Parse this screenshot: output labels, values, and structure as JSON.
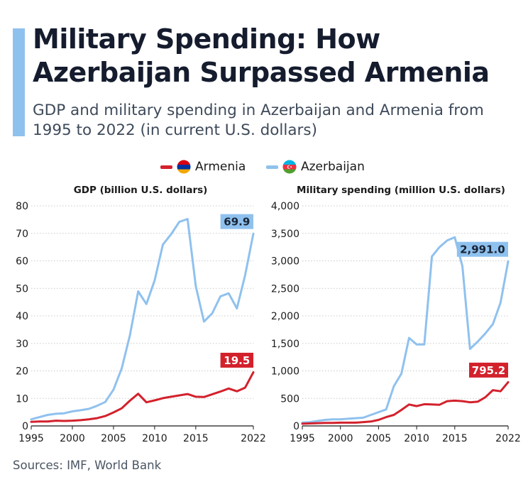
{
  "header": {
    "title": "Military Spending: How Azerbaijan Surpassed Armenia",
    "subtitle": "GDP and military spending in Azerbaijan and Armenia from 1995 to 2022 (in current U.S. dollars)"
  },
  "legend": {
    "items": [
      {
        "label": "Armenia",
        "color": "#d3212c",
        "flag-icon": "armenia-flag-icon"
      },
      {
        "label": "Azerbaijan",
        "color": "#8fc1ee",
        "flag-icon": "azerbaijan-flag-icon"
      }
    ]
  },
  "footer": {
    "source": "Sources: IMF, World Bank"
  },
  "chart_data": [
    {
      "type": "line",
      "title": "GDP (billion U.S. dollars)",
      "xlabel": "",
      "ylabel": "",
      "x": [
        1995,
        1996,
        1997,
        1998,
        1999,
        2000,
        2001,
        2002,
        2003,
        2004,
        2005,
        2006,
        2007,
        2008,
        2009,
        2010,
        2011,
        2012,
        2013,
        2014,
        2015,
        2016,
        2017,
        2018,
        2019,
        2020,
        2021,
        2022
      ],
      "xticks": [
        "1995",
        "2000",
        "2005",
        "2010",
        "2015",
        "2022"
      ],
      "xtick_values": [
        1995,
        2000,
        2005,
        2010,
        2015,
        2022
      ],
      "ylim": [
        0,
        80
      ],
      "yticks": [
        "0",
        "10",
        "20",
        "30",
        "40",
        "50",
        "60",
        "70",
        "80"
      ],
      "grid": true,
      "series": [
        {
          "name": "Azerbaijan",
          "color": "#8fc1ee",
          "values": [
            2.4,
            3.2,
            4.0,
            4.4,
            4.6,
            5.3,
            5.7,
            6.2,
            7.3,
            8.7,
            13.2,
            20.9,
            33.0,
            48.9,
            44.3,
            52.9,
            65.9,
            69.7,
            74.2,
            75.2,
            50.8,
            37.9,
            40.9,
            47.1,
            48.2,
            42.7,
            54.8,
            69.9
          ],
          "end_label": "69.9"
        },
        {
          "name": "Armenia",
          "color": "#d3212c",
          "values": [
            1.5,
            1.6,
            1.6,
            1.9,
            1.8,
            1.9,
            2.1,
            2.4,
            2.8,
            3.6,
            4.9,
            6.4,
            9.2,
            11.7,
            8.6,
            9.3,
            10.1,
            10.6,
            11.1,
            11.6,
            10.6,
            10.5,
            11.5,
            12.5,
            13.6,
            12.6,
            13.9,
            19.5
          ],
          "end_label": "19.5"
        }
      ]
    },
    {
      "type": "line",
      "title": "Military spending (million U.S. dollars)",
      "xlabel": "",
      "ylabel": "",
      "x": [
        1995,
        1996,
        1997,
        1998,
        1999,
        2000,
        2001,
        2002,
        2003,
        2004,
        2005,
        2006,
        2007,
        2008,
        2009,
        2010,
        2011,
        2012,
        2013,
        2014,
        2015,
        2016,
        2017,
        2018,
        2019,
        2020,
        2021,
        2022
      ],
      "xticks": [
        "1995",
        "2000",
        "2005",
        "2010",
        "2015",
        "2022"
      ],
      "xtick_values": [
        1995,
        2000,
        2005,
        2010,
        2015,
        2022
      ],
      "ylim": [
        0,
        4000
      ],
      "yticks": [
        "0",
        "500",
        "1,000",
        "1,500",
        "2,000",
        "2,500",
        "3,000",
        "3,500",
        "4,000"
      ],
      "grid": true,
      "series": [
        {
          "name": "Azerbaijan",
          "color": "#8fc1ee",
          "values": [
            60,
            70,
            90,
            110,
            120,
            120,
            130,
            140,
            150,
            200,
            250,
            300,
            720,
            950,
            1600,
            1480,
            1480,
            3080,
            3250,
            3370,
            3430,
            2900,
            1400,
            1530,
            1680,
            1850,
            2240,
            2991.0
          ],
          "end_label": "2,991.0"
        },
        {
          "name": "Armenia",
          "color": "#d3212c",
          "values": [
            40,
            45,
            50,
            55,
            55,
            60,
            60,
            60,
            70,
            80,
            110,
            160,
            200,
            290,
            390,
            360,
            395,
            390,
            385,
            450,
            460,
            450,
            430,
            440,
            520,
            650,
            630,
            795.2
          ],
          "end_label": "795.2"
        }
      ]
    }
  ]
}
